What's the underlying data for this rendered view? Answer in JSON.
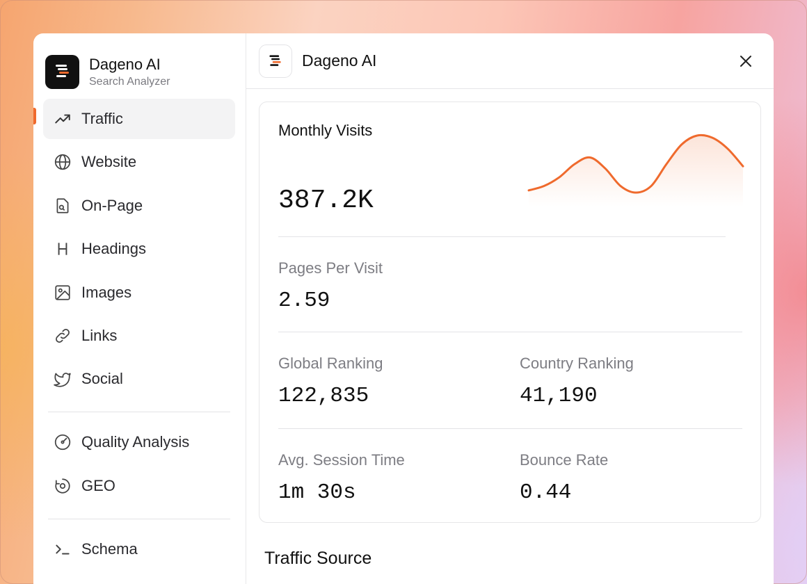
{
  "app": {
    "name": "Dageno AI",
    "subtitle": "Search Analyzer"
  },
  "sidebar": {
    "items": [
      {
        "label": "Traffic",
        "icon": "trending-up-icon",
        "active": true
      },
      {
        "label": "Website",
        "icon": "globe-icon"
      },
      {
        "label": "On-Page",
        "icon": "document-search-icon"
      },
      {
        "label": "Headings",
        "icon": "heading-icon"
      },
      {
        "label": "Images",
        "icon": "image-icon"
      },
      {
        "label": "Links",
        "icon": "link-icon"
      },
      {
        "label": "Social",
        "icon": "twitter-icon"
      }
    ],
    "items2": [
      {
        "label": "Quality Analysis",
        "icon": "gauge-icon"
      },
      {
        "label": "GEO",
        "icon": "geo-icon"
      }
    ],
    "items3": [
      {
        "label": "Schema",
        "icon": "terminal-icon"
      }
    ]
  },
  "header": {
    "title": "Dageno AI",
    "close_icon": "close-icon"
  },
  "metrics": {
    "monthly_visits_label": "Monthly Visits",
    "monthly_visits_value": "387.2K",
    "pages_per_visit_label": "Pages Per Visit",
    "pages_per_visit_value": "2.59",
    "global_ranking_label": "Global Ranking",
    "global_ranking_value": "122,835",
    "country_ranking_label": "Country Ranking",
    "country_ranking_value": "41,190",
    "avg_session_label": "Avg. Session Time",
    "avg_session_value": "1m 30s",
    "bounce_rate_label": "Bounce Rate",
    "bounce_rate_value": "0.44"
  },
  "sparkline": {
    "color": "#ef6a2d",
    "values": [
      10,
      14,
      22,
      34,
      40,
      30,
      14,
      8,
      14,
      34,
      52,
      60,
      58,
      48,
      32
    ]
  },
  "traffic_source_title": "Traffic Source",
  "colors": {
    "accent": "#ef6a2d"
  }
}
